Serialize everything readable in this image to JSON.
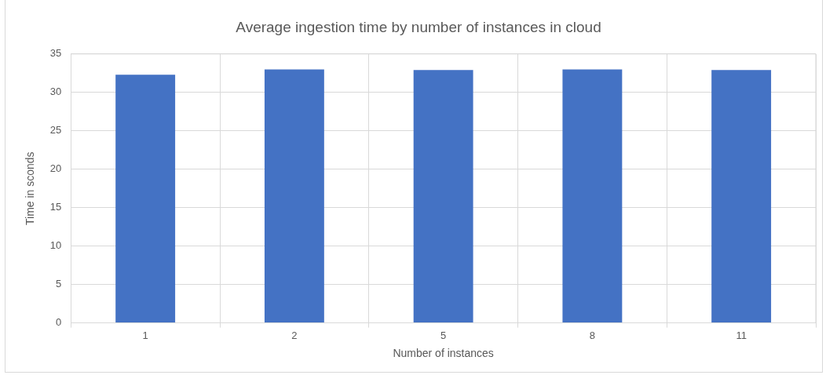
{
  "chart_data": {
    "type": "bar",
    "title": "Average ingestion time by number of instances in cloud",
    "xlabel": "Number of instances",
    "ylabel": "Time in sconds",
    "categories": [
      "1",
      "2",
      "5",
      "8",
      "11"
    ],
    "values": [
      32.3,
      33.0,
      32.9,
      33.0,
      32.9
    ],
    "color": "#4472c4",
    "ylim": [
      0,
      35
    ],
    "yticks": [
      0,
      5,
      10,
      15,
      20,
      25,
      30,
      35
    ],
    "grid": true,
    "legend": false
  }
}
